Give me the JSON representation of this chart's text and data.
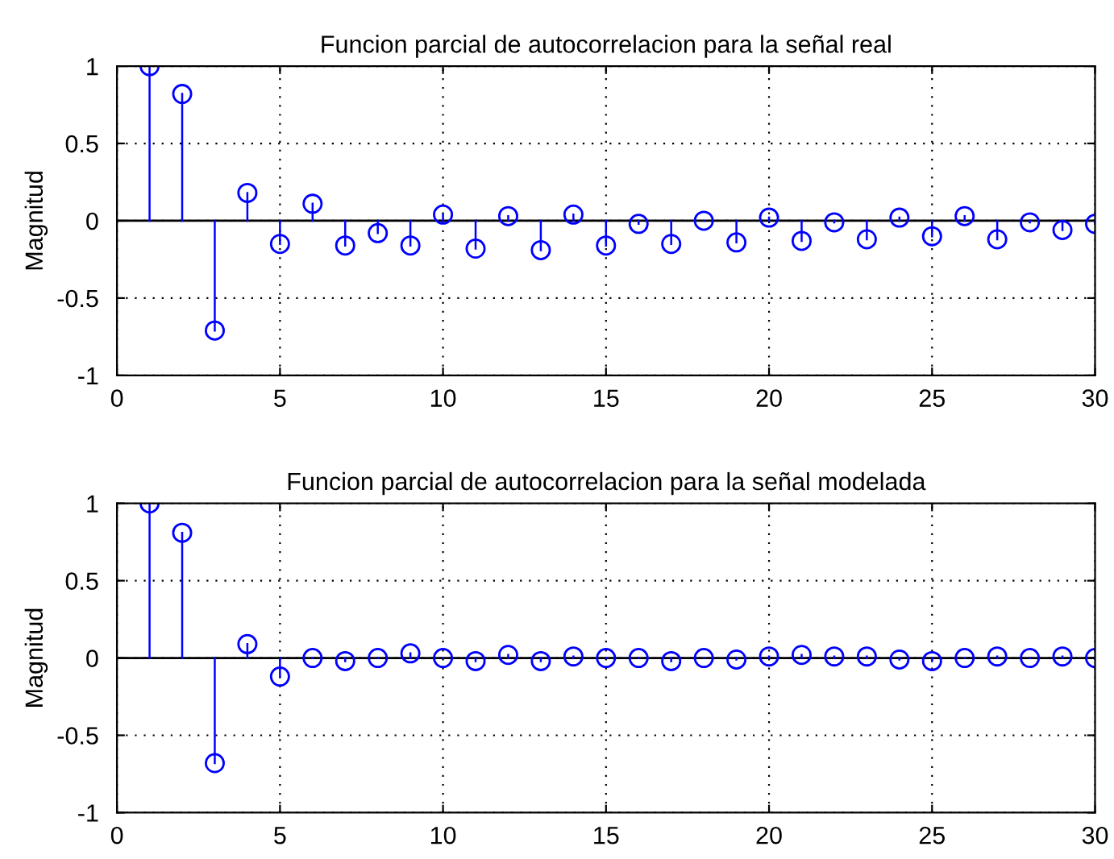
{
  "chart_data": [
    {
      "type": "lollipop",
      "title": "Funcion parcial de autocorrelacion para la señal real",
      "ylabel": "Magnitud",
      "yticks": [
        -1,
        -0.5,
        0,
        0.5,
        1
      ],
      "x": [
        1,
        2,
        3,
        4,
        5,
        6,
        7,
        8,
        9,
        10,
        11,
        12,
        13,
        14,
        15,
        16,
        17,
        18,
        19,
        20,
        21,
        22,
        23,
        24,
        25,
        26,
        27,
        28,
        29,
        30
      ],
      "values": [
        1.0,
        0.82,
        -0.71,
        0.18,
        -0.15,
        0.11,
        -0.16,
        -0.08,
        -0.16,
        0.04,
        -0.18,
        0.03,
        -0.19,
        0.04,
        -0.16,
        -0.02,
        -0.15,
        0.0,
        -0.14,
        0.02,
        -0.13,
        -0.01,
        -0.12,
        0.02,
        -0.1,
        0.03,
        -0.12,
        -0.01,
        -0.06,
        -0.02
      ],
      "color": "#0000ff",
      "marker": "circle",
      "grid": true,
      "xlim": [
        0,
        30
      ],
      "xticks": [
        0,
        5,
        10,
        15,
        20,
        25,
        30
      ],
      "ylim": [
        -1,
        1
      ]
    },
    {
      "type": "lollipop",
      "title": "Funcion parcial de autocorrelacion para la señal modelada",
      "ylabel": "Magnitud",
      "x": [
        1,
        2,
        3,
        4,
        5,
        6,
        7,
        8,
        9,
        10,
        11,
        12,
        13,
        14,
        15,
        16,
        17,
        18,
        19,
        20,
        21,
        22,
        23,
        24,
        25,
        26,
        27,
        28,
        29,
        30
      ],
      "values": [
        1.0,
        0.81,
        -0.68,
        0.09,
        -0.12,
        0.0,
        -0.02,
        0.0,
        0.03,
        0.0,
        -0.02,
        0.02,
        -0.02,
        0.01,
        0.0,
        0.0,
        -0.02,
        0.0,
        -0.01,
        0.01,
        0.02,
        0.01,
        0.01,
        -0.01,
        -0.02,
        0.0,
        0.01,
        0.0,
        0.01,
        0.0
      ],
      "color": "#0000ff",
      "marker": "circle",
      "grid": true,
      "xlim": [
        0,
        30
      ],
      "xticks": [
        0,
        5,
        10,
        15,
        20,
        25,
        30
      ],
      "ylim": [
        -1,
        1
      ],
      "yticks": [
        -1,
        -0.5,
        0,
        0.5,
        1
      ]
    }
  ]
}
